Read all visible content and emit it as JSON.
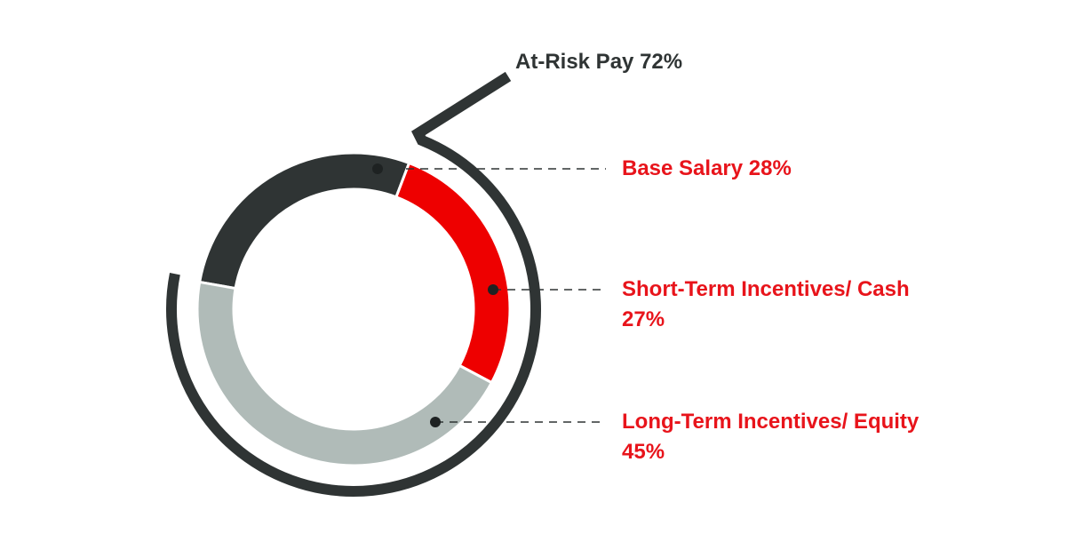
{
  "chart_data": {
    "type": "donut",
    "categories": [
      "Base Salary",
      "Short-Term Incentives/ Cash",
      "Long-Term Incentives/ Equity"
    ],
    "values": [
      28,
      27,
      45
    ],
    "value_labels": [
      "28%",
      "27%",
      "45%"
    ],
    "colors": [
      "#2f3434",
      "#ee0000",
      "#b0bbb8"
    ],
    "annotation": {
      "label": "At-Risk Pay",
      "value": 72,
      "value_label": "72%"
    }
  }
}
